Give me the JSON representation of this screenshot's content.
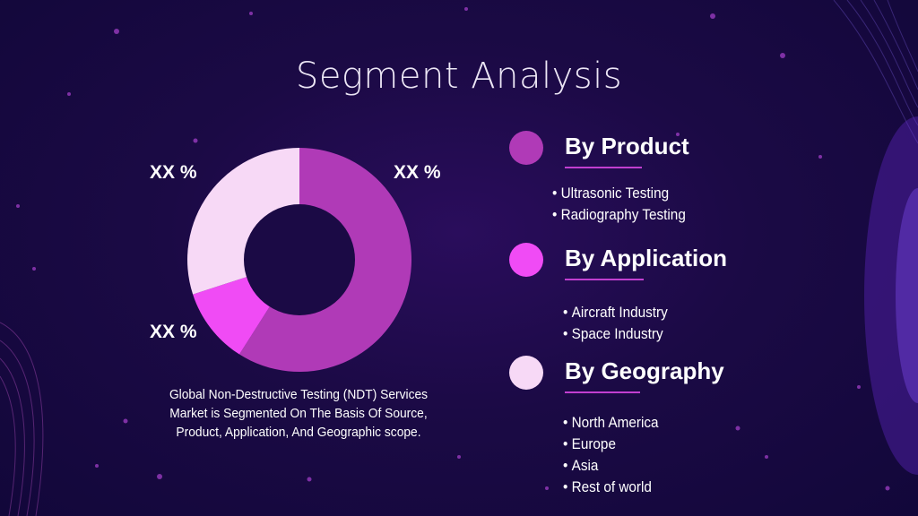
{
  "title": "Segment Analysis",
  "chart_data": {
    "type": "pie",
    "donut": true,
    "slices": [
      {
        "label": "XX %",
        "value": 0.59,
        "color": "#b03ab7"
      },
      {
        "label": "XX %",
        "value": 0.11,
        "color": "#f04bf5"
      },
      {
        "label": "XX %",
        "value": 0.3,
        "color": "#f7d9f6"
      }
    ],
    "start_angle_deg": 0,
    "direction": "clockwise"
  },
  "description": "Global Non-Destructive Testing (NDT) Services Market is Segmented On The Basis Of Source, Product, Application, And Geographic scope.",
  "segments": [
    {
      "title": "By Product",
      "color": "#b03ab7",
      "items": [
        "Ultrasonic Testing",
        "Radiography Testing"
      ]
    },
    {
      "title": "By Application",
      "color": "#f04bf5",
      "items": [
        "Aircraft Industry",
        "Space Industry"
      ]
    },
    {
      "title": "By Geography",
      "color": "#f7d9f6",
      "items": [
        "North America",
        "Europe",
        "Asia",
        "Rest of world"
      ]
    }
  ]
}
